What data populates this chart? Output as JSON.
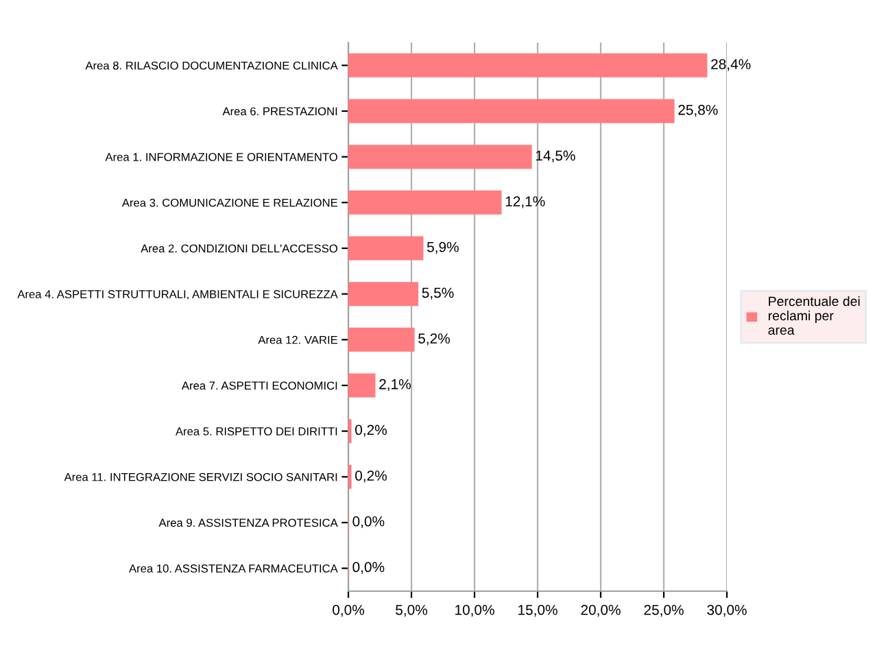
{
  "chart_data": {
    "type": "bar",
    "orientation": "horizontal",
    "categories": [
      "Area 8. RILASCIO DOCUMENTAZIONE CLINICA",
      "Area 6. PRESTAZIONI",
      "Area 1. INFORMAZIONE E ORIENTAMENTO",
      "Area 3. COMUNICAZIONE E RELAZIONE",
      "Area 2. CONDIZIONI DELL'ACCESSO",
      "Area 4. ASPETTI STRUTTURALI, AMBIENTALI E SICUREZZA",
      "Area 12. VARIE",
      "Area 7. ASPETTI ECONOMICI",
      "Area 5. RISPETTO DEI DIRITTI",
      "Area 11. INTEGRAZIONE SERVIZI SOCIO SANITARI",
      "Area 9. ASSISTENZA PROTESICA",
      "Area 10. ASSISTENZA FARMACEUTICA"
    ],
    "series": [
      {
        "name": "Percentuale dei reclami per area",
        "color": "#ff7c80",
        "values": [
          28.4,
          25.8,
          14.5,
          12.1,
          5.9,
          5.5,
          5.2,
          2.1,
          0.2,
          0.2,
          0.0,
          0.0
        ],
        "value_labels": [
          "28,4%",
          "25,8%",
          "14,5%",
          "12,1%",
          "5,9%",
          "5,5%",
          "5,2%",
          "2,1%",
          "0,2%",
          "0,2%",
          "0,0%",
          "0,0%"
        ]
      }
    ],
    "xlim": [
      0,
      30
    ],
    "xticks": [
      {
        "value": 0,
        "label": "0,0%"
      },
      {
        "value": 5,
        "label": "5,0%"
      },
      {
        "value": 10,
        "label": "10,0%"
      },
      {
        "value": 15,
        "label": "15,0%"
      },
      {
        "value": 20,
        "label": "20,0%"
      },
      {
        "value": 25,
        "label": "25,0%"
      },
      {
        "value": 30,
        "label": "30,0%"
      }
    ],
    "grid": "x",
    "legend": "right"
  }
}
